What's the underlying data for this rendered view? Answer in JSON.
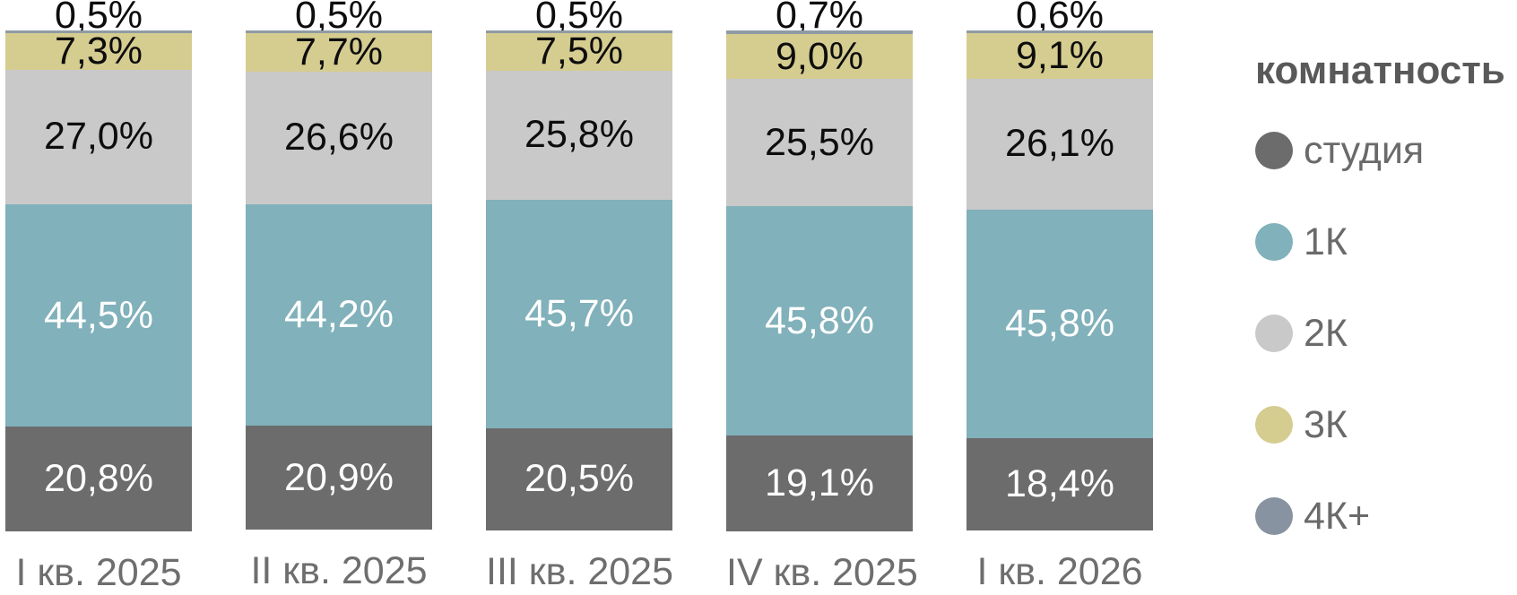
{
  "chart_data": {
    "type": "bar",
    "stacked": true,
    "orientation": "vertical",
    "unit": "%",
    "title": "",
    "xlabel": "",
    "ylabel": "",
    "axis": {
      "y_min": 0,
      "y_max": 100,
      "gridlines": false,
      "axes_visible": false
    },
    "categories": [
      "I кв. 2025",
      "II кв. 2025",
      "III кв. 2025",
      "IV кв. 2025",
      "I кв. 2026"
    ],
    "series": [
      {
        "key": "studio",
        "name": "студия",
        "color": "#6c6c6c",
        "legend_color": "#6c6c6c",
        "label_color": "#ffffff",
        "label_position": "inside",
        "values": [
          20.8,
          20.9,
          20.5,
          19.1,
          18.4
        ],
        "labels": [
          "20,8%",
          "20,9%",
          "20,5%",
          "19,1%",
          "18,4%"
        ]
      },
      {
        "key": "1k",
        "name": "1К",
        "color": "#81b1ba",
        "legend_color": "#81b1ba",
        "label_color": "#ffffff",
        "label_position": "inside",
        "values": [
          44.5,
          44.2,
          45.7,
          45.8,
          45.8
        ],
        "labels": [
          "44,5%",
          "44,2%",
          "45,7%",
          "45,8%",
          "45,8%"
        ]
      },
      {
        "key": "2k",
        "name": "2К",
        "color": "#c9c9c9",
        "legend_color": "#c9c9c9",
        "label_color": "#0d0d0d",
        "label_position": "inside",
        "values": [
          27.0,
          26.6,
          25.8,
          25.5,
          26.1
        ],
        "labels": [
          "27,0%",
          "26,6%",
          "25,8%",
          "25,5%",
          "26,1%"
        ]
      },
      {
        "key": "3k",
        "name": "3К",
        "color": "#d5cc90",
        "legend_color": "#d5cc90",
        "label_color": "#0d0d0d",
        "label_position": "inside",
        "values": [
          7.3,
          7.7,
          7.5,
          9.0,
          9.1
        ],
        "labels": [
          "7,3%",
          "7,7%",
          "7,5%",
          "9,0%",
          "9,1%"
        ]
      },
      {
        "key": "4k-plus",
        "name": "4К+",
        "color": "#8f9aa4",
        "legend_color": "#8793a0",
        "label_color": "#0d0d0d",
        "label_position": "outside-top",
        "values": [
          0.5,
          0.5,
          0.5,
          0.7,
          0.6
        ],
        "labels": [
          "0,5%",
          "0,5%",
          "0,5%",
          "0,7%",
          "0,6%"
        ]
      }
    ],
    "legend": {
      "title": "комнатность",
      "position": "right"
    },
    "text_colors": {
      "category_label": "#6e6e6e",
      "legend_item": "#6a6a6a",
      "legend_title": "#595959"
    }
  }
}
